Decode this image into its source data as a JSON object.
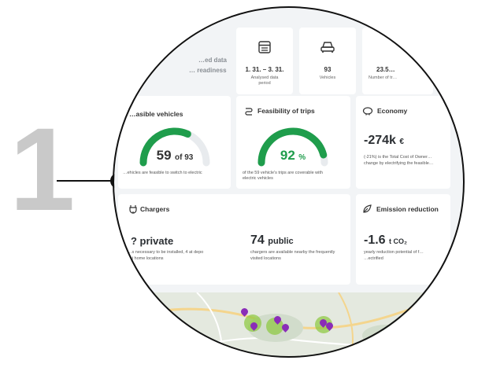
{
  "tutorial": {
    "step_number": "1"
  },
  "header": {
    "intro_line1": "…ed data",
    "intro_line2": "… readiness"
  },
  "stats": [
    {
      "icon": "calendar-icon",
      "value": "1. 31. – 3. 31.",
      "label_line1": "Analysed data",
      "label_line2": "period"
    },
    {
      "icon": "car-icon",
      "value": "93",
      "label_line1": "Vehicles",
      "label_line2": ""
    },
    {
      "icon": "trips-icon",
      "value": "23.5…",
      "label_line1": "Number of tr…",
      "label_line2": ""
    }
  ],
  "feasible_vehicles": {
    "title": "…asible vehicles",
    "value": "59",
    "of_text": "of 93",
    "fraction": 0.634,
    "desc": "…ehicles are feasible to switch to electric"
  },
  "feasibility_trips": {
    "title": "Feasibility of trips",
    "value": "92",
    "unit": "%",
    "fraction": 0.92,
    "desc_line1": "of the 59 vehicle's trips are coverable with",
    "desc_line2": "electric vehicles"
  },
  "economy": {
    "title": "Economy",
    "value": "-274k",
    "unit": "€",
    "desc_line1": "(-21%) is the Total Cost of Owner…",
    "desc_line2": "change by electrifying the feasible…"
  },
  "chargers": {
    "title": "Chargers",
    "private_value": "? private",
    "private_desc_line1": "…s necessary to be installed, 4 at depo",
    "private_desc_line2": "…t home locations",
    "public_value": "74",
    "public_label": "public",
    "public_desc_line1": "chargers are available nearby the frequently",
    "public_desc_line2": "visited locations"
  },
  "emission": {
    "title": "Emission reduction",
    "value": "-1.6",
    "unit": "t CO₂",
    "desc_line1": "yearly reduction potential of f…",
    "desc_line2": "…ectrified"
  },
  "colors": {
    "accent_green": "#1f9d4c",
    "gauge_track": "#e8ebee",
    "pin_purple": "#8a2db8"
  }
}
